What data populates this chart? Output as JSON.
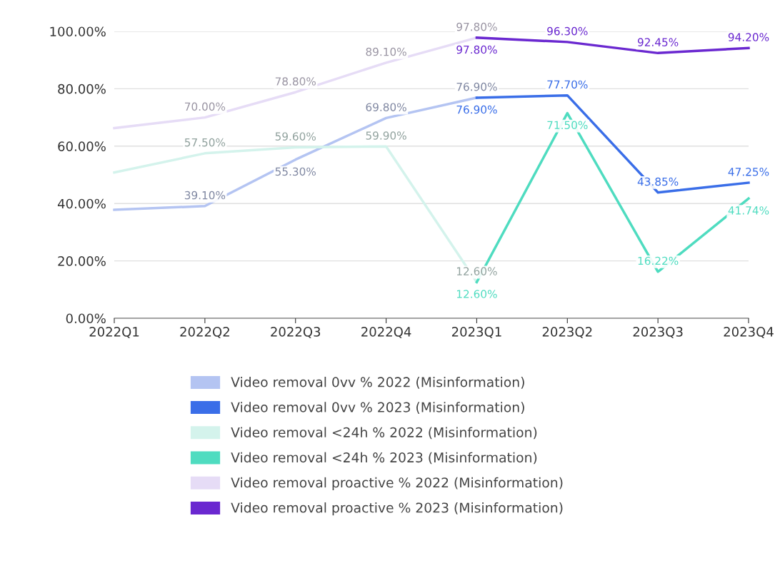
{
  "chart_data": {
    "type": "line",
    "categories": [
      "2022Q1",
      "2022Q2",
      "2022Q3",
      "2022Q4",
      "2023Q1",
      "2023Q2",
      "2023Q3",
      "2023Q4"
    ],
    "series": [
      {
        "name": "Video removal 0vv % 2022 (Misinformation)",
        "color": "#b4c4f2",
        "values": [
          37.8,
          39.1,
          55.3,
          69.8,
          76.9,
          null,
          null,
          null
        ],
        "value_labels": [
          null,
          "39.10%",
          "55.30%",
          "69.80%",
          "76.90%",
          null,
          null,
          null
        ]
      },
      {
        "name": "Video removal 0vv % 2023 (Misinformation)",
        "color": "#3a6ee8",
        "values": [
          null,
          null,
          null,
          null,
          76.9,
          77.7,
          43.85,
          47.25
        ],
        "value_labels": [
          null,
          null,
          null,
          null,
          "76.90%",
          "77.70%",
          "43.85%",
          "47.25%"
        ]
      },
      {
        "name": "Video removal <24h % 2022 (Misinformation)",
        "color": "#d4f3ec",
        "values": [
          50.8,
          57.5,
          59.6,
          59.9,
          12.6,
          null,
          null,
          null
        ],
        "value_labels": [
          null,
          "57.50%",
          "59.60%",
          "59.90%",
          "12.60%",
          null,
          null,
          null
        ]
      },
      {
        "name": "Video removal <24h % 2023 (Misinformation)",
        "color": "#4fdcc0",
        "values": [
          null,
          null,
          null,
          null,
          12.6,
          71.5,
          16.22,
          41.74
        ],
        "value_labels": [
          null,
          null,
          null,
          null,
          "12.60%",
          "71.50%",
          "16.22%",
          "41.74%"
        ]
      },
      {
        "name": "Video removal proactive % 2022 (Misinformation)",
        "color": "#e6dcf6",
        "values": [
          66.3,
          70.0,
          78.8,
          89.1,
          97.8,
          null,
          null,
          null
        ],
        "value_labels": [
          null,
          "70.00%",
          "78.80%",
          "89.10%",
          "97.80%",
          null,
          null,
          null
        ]
      },
      {
        "name": "Video removal proactive % 2023 (Misinformation)",
        "color": "#6a28d0",
        "values": [
          null,
          null,
          null,
          null,
          97.8,
          96.3,
          92.45,
          94.2
        ],
        "value_labels": [
          null,
          null,
          null,
          null,
          "97.80%",
          "96.30%",
          "92.45%",
          "94.20%"
        ]
      }
    ],
    "ylim": [
      0,
      100
    ],
    "yticks": [
      {
        "value": 0,
        "label": "0.00%"
      },
      {
        "value": 20,
        "label": "20.00%"
      },
      {
        "value": 40,
        "label": "40.00%"
      },
      {
        "value": 60,
        "label": "60.00%"
      },
      {
        "value": 80,
        "label": "80.00%"
      },
      {
        "value": 100,
        "label": "100.00%"
      }
    ],
    "grid": "y",
    "legend": "bottom",
    "marker": "none",
    "line_style": "solid"
  }
}
